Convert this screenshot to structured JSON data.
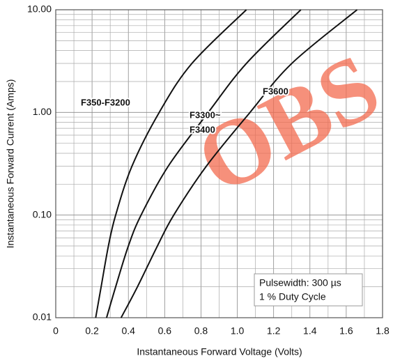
{
  "chart_data": {
    "type": "line",
    "watermark": "OBS",
    "xlabel": "Instantaneous Forward Voltage (Volts)",
    "ylabel": "Instantaneous Forward Current (Amps)",
    "xlim": [
      0,
      1.8
    ],
    "xticks": [
      0,
      0.2,
      0.4,
      0.6,
      0.8,
      {
        "value": 1,
        "label": "1.0"
      },
      1.2,
      1.4,
      1.6,
      1.8
    ],
    "ylim": [
      0.01,
      10
    ],
    "yticks": [
      {
        "value": 0.01,
        "label": "0.01"
      },
      {
        "value": 0.1,
        "label": "0.10"
      },
      {
        "value": 1,
        "label": "1.00"
      },
      {
        "value": 10,
        "label": "10.00"
      }
    ],
    "log_y": true,
    "grid": true,
    "series": [
      {
        "labels": [
          "F350-F3200"
        ],
        "color": "#111111",
        "x": [
          0.22,
          0.25,
          0.29,
          0.33,
          0.42,
          0.57,
          0.75,
          1.05
        ],
        "values": [
          0.01,
          0.02,
          0.05,
          0.1,
          0.3,
          1,
          3,
          10
        ]
      },
      {
        "labels": [
          "F3300~",
          "F3400"
        ],
        "color": "#111111",
        "x": [
          0.28,
          0.33,
          0.4,
          0.47,
          0.62,
          0.84,
          1.05,
          1.35
        ],
        "values": [
          0.01,
          0.02,
          0.05,
          0.1,
          0.3,
          1,
          3,
          10
        ]
      },
      {
        "labels": [
          "F3600"
        ],
        "color": "#111111",
        "x": [
          0.36,
          0.45,
          0.56,
          0.65,
          0.83,
          1.07,
          1.3,
          1.66
        ],
        "values": [
          0.01,
          0.02,
          0.05,
          0.1,
          0.3,
          1,
          3,
          10
        ]
      }
    ],
    "note": [
      "Pulsewidth: 300 µs",
      "1 % Duty Cycle"
    ]
  }
}
